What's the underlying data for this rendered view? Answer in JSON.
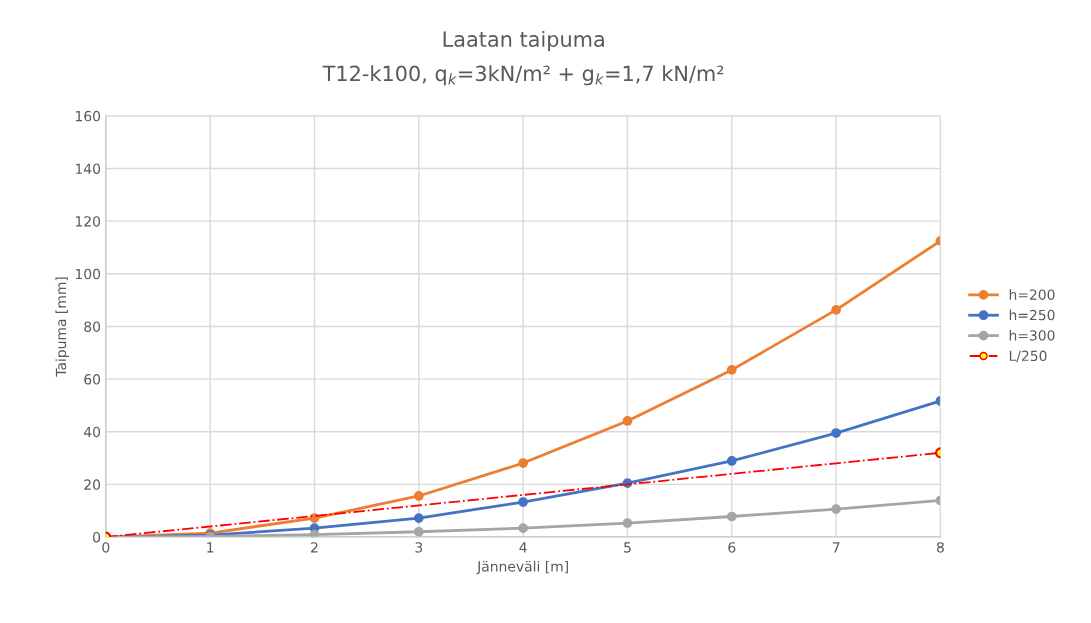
{
  "chart_data": {
    "type": "line",
    "title": "Laatan taipuma",
    "subtitle": "T12-k100, q$_{k}$=3kN/m² + g$_{k}$=1,7 kN/m²",
    "xlabel": "Jänneväli [m]",
    "ylabel": "Taipuma [mm]",
    "x": [
      0,
      1,
      2,
      3,
      4,
      5,
      6,
      7,
      8
    ],
    "series": [
      {
        "name": "h=200",
        "color": "#ed7d31",
        "values": [
          0,
          1.5,
          7.2,
          15.6,
          28.1,
          44.1,
          63.5,
          86.3,
          112.5
        ]
      },
      {
        "name": "h=250",
        "color": "#4472c4",
        "values": [
          0,
          0.7,
          3.4,
          7.2,
          13.3,
          20.5,
          28.9,
          39.5,
          51.7
        ]
      },
      {
        "name": "h=300",
        "color": "#a5a5a5",
        "values": [
          0,
          0.2,
          0.9,
          2,
          3.4,
          5.3,
          7.8,
          10.6,
          13.9
        ]
      },
      {
        "name": "L/250",
        "color": "#ff0000",
        "values": [
          0,
          4,
          8,
          12,
          16,
          20,
          24,
          28,
          32
        ],
        "line_style": "dashdot",
        "marker": "none"
      },
      {
        "type": "scatter",
        "color": "#ff0000",
        "x": [
          0,
          8
        ],
        "values": [
          0,
          32
        ]
      }
    ],
    "xlim": [
      0,
      8
    ],
    "xticks": [
      0,
      1,
      2,
      3,
      4,
      5,
      6,
      7,
      8
    ],
    "ylim": [
      0,
      160
    ],
    "yticks": [
      0,
      20,
      40,
      60,
      80,
      100,
      120,
      140,
      160
    ],
    "grid": true,
    "legend": "right",
    "marker": "circle",
    "line_style": "solid"
  }
}
